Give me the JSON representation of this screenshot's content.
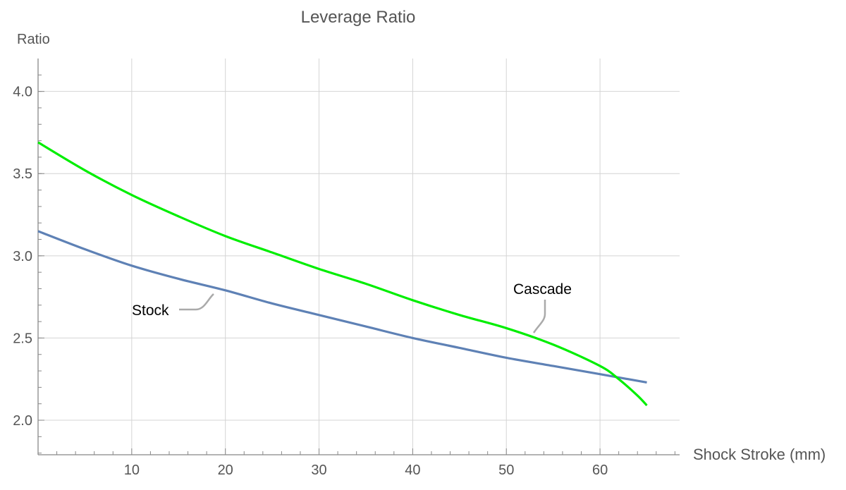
{
  "chart_data": {
    "type": "line",
    "title": "Leverage Ratio",
    "xlabel": "Shock Stroke (mm)",
    "ylabel": "Ratio",
    "xlim": [
      0,
      68.5
    ],
    "ylim": [
      1.79,
      4.2
    ],
    "grid": true,
    "x_ticks": [
      "10",
      "20",
      "30",
      "40",
      "50",
      "60"
    ],
    "y_ticks": [
      "2.0",
      "2.5",
      "3.0",
      "3.5",
      "4.0"
    ],
    "series": [
      {
        "name": "Stock",
        "color": "#5e81b5",
        "x": [
          0,
          5,
          10,
          15,
          20,
          25,
          30,
          35,
          40,
          45,
          50,
          55,
          60,
          65
        ],
        "y": [
          3.15,
          3.04,
          2.94,
          2.86,
          2.79,
          2.71,
          2.64,
          2.57,
          2.5,
          2.44,
          2.38,
          2.33,
          2.28,
          2.23
        ]
      },
      {
        "name": "Cascade",
        "color": "#00ee00",
        "x": [
          0,
          5,
          10,
          15,
          20,
          25,
          30,
          35,
          40,
          45,
          50,
          55,
          60,
          62,
          64,
          65
        ],
        "y": [
          3.69,
          3.52,
          3.37,
          3.24,
          3.12,
          3.02,
          2.92,
          2.83,
          2.73,
          2.64,
          2.56,
          2.46,
          2.33,
          2.25,
          2.15,
          2.09
        ]
      }
    ]
  }
}
